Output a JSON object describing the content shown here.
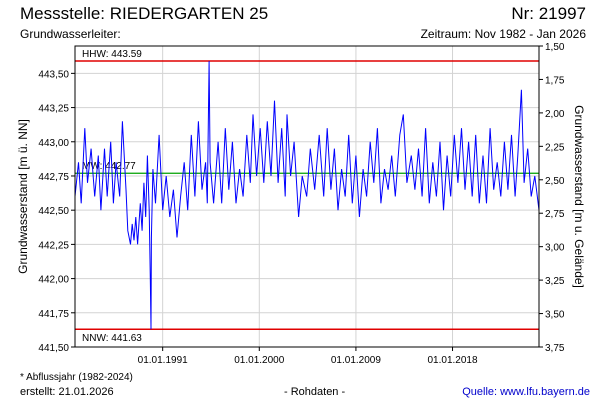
{
  "header": {
    "title": "Messstelle: RIEDERGARTEN 25",
    "number": "Nr: 21997",
    "aquifer": "Grundwasserleiter:",
    "period": "Zeitraum: Nov 1982 - Jan 2026"
  },
  "footer": {
    "footnote": "* Abflussjahr (1982-2024)",
    "created": "erstellt:  21.01.2026",
    "data_type": "- Rohdaten -",
    "source": "Quelle: www.lfu.bayern.de"
  },
  "chart_data": {
    "type": "line",
    "ylabel": "Grundwasserstand [m ü. NN]",
    "y2label": "Grundwasserstand [m u. Gelände]",
    "ylim": [
      441.5,
      443.7
    ],
    "y2lim": [
      3.75,
      1.5
    ],
    "xlim": [
      "1982-11-01",
      "2026-01-21"
    ],
    "grid": true,
    "y_ticks": [
      "441,50",
      "441,75",
      "442,00",
      "442,25",
      "442,50",
      "442,75",
      "443,00",
      "443,25",
      "443,50"
    ],
    "y2_ticks": [
      "3,75",
      "3,50",
      "3,25",
      "3,00",
      "2,75",
      "2,50",
      "2,25",
      "2,00",
      "1,75",
      "1,50"
    ],
    "x_ticks": [
      {
        "label": "01.01.1991",
        "date": "1991-01-01"
      },
      {
        "label": "01.01.2000",
        "date": "2000-01-01"
      },
      {
        "label": "01.01.2009",
        "date": "2009-01-01"
      },
      {
        "label": "01.01.2018",
        "date": "2018-01-01"
      }
    ],
    "reference_lines": [
      {
        "name": "HHW",
        "label": "HHW: 443.59",
        "value": 443.59,
        "color": "#e00000"
      },
      {
        "name": "MW",
        "label": "MW: 442.77",
        "value": 442.77,
        "color": "#00a000"
      },
      {
        "name": "NNW",
        "label": "NNW: 441.63",
        "value": 441.63,
        "color": "#e00000"
      }
    ],
    "series": [
      {
        "color": "#0000ff",
        "points": [
          [
            "1982-11-01",
            442.6
          ],
          [
            "1983-03-01",
            442.85
          ],
          [
            "1983-06-01",
            442.55
          ],
          [
            "1983-10-01",
            443.1
          ],
          [
            "1984-01-01",
            442.7
          ],
          [
            "1984-05-01",
            442.95
          ],
          [
            "1984-09-01",
            442.6
          ],
          [
            "1985-01-01",
            442.9
          ],
          [
            "1985-04-01",
            442.5
          ],
          [
            "1985-08-01",
            442.95
          ],
          [
            "1985-11-01",
            442.6
          ],
          [
            "1986-03-01",
            443.0
          ],
          [
            "1986-06-01",
            442.55
          ],
          [
            "1986-09-01",
            442.85
          ],
          [
            "1987-01-01",
            442.6
          ],
          [
            "1987-04-01",
            443.15
          ],
          [
            "1987-08-01",
            442.65
          ],
          [
            "1987-10-01",
            442.35
          ],
          [
            "1988-01-01",
            442.25
          ],
          [
            "1988-03-01",
            442.4
          ],
          [
            "1988-05-01",
            442.28
          ],
          [
            "1988-07-01",
            442.45
          ],
          [
            "1988-09-01",
            442.25
          ],
          [
            "1988-12-01",
            442.55
          ],
          [
            "1989-02-01",
            442.35
          ],
          [
            "1989-04-01",
            442.7
          ],
          [
            "1989-06-01",
            442.45
          ],
          [
            "1989-08-01",
            442.9
          ],
          [
            "1989-10-01",
            442.5
          ],
          [
            "1989-11-10",
            441.95
          ],
          [
            "1989-12-01",
            441.63
          ],
          [
            "1989-12-15",
            442.3
          ],
          [
            "1990-02-01",
            442.8
          ],
          [
            "1990-05-01",
            442.55
          ],
          [
            "1990-09-01",
            443.05
          ],
          [
            "1991-01-01",
            442.5
          ],
          [
            "1991-05-01",
            442.75
          ],
          [
            "1991-09-01",
            442.45
          ],
          [
            "1992-01-01",
            442.65
          ],
          [
            "1992-05-01",
            442.3
          ],
          [
            "1992-09-01",
            442.6
          ],
          [
            "1993-01-01",
            442.85
          ],
          [
            "1993-05-01",
            442.5
          ],
          [
            "1993-09-01",
            443.05
          ],
          [
            "1994-01-01",
            442.6
          ],
          [
            "1994-05-01",
            443.15
          ],
          [
            "1994-09-01",
            442.65
          ],
          [
            "1995-01-01",
            442.85
          ],
          [
            "1995-03-01",
            442.55
          ],
          [
            "1995-05-01",
            443.59
          ],
          [
            "1995-06-01",
            442.85
          ],
          [
            "1995-10-01",
            442.55
          ],
          [
            "1996-03-01",
            443.0
          ],
          [
            "1996-07-01",
            442.55
          ],
          [
            "1996-11-01",
            443.1
          ],
          [
            "1997-03-01",
            442.65
          ],
          [
            "1997-07-01",
            443.0
          ],
          [
            "1997-11-01",
            442.55
          ],
          [
            "1998-03-01",
            442.8
          ],
          [
            "1998-07-01",
            442.6
          ],
          [
            "1998-11-01",
            443.05
          ],
          [
            "1999-03-01",
            442.7
          ],
          [
            "1999-06-01",
            443.2
          ],
          [
            "1999-10-01",
            442.75
          ],
          [
            "2000-02-01",
            443.1
          ],
          [
            "2000-06-01",
            442.7
          ],
          [
            "2000-10-01",
            443.15
          ],
          [
            "2001-02-01",
            442.75
          ],
          [
            "2001-06-01",
            443.3
          ],
          [
            "2001-10-01",
            442.7
          ],
          [
            "2002-02-01",
            443.1
          ],
          [
            "2002-06-01",
            442.6
          ],
          [
            "2002-08-01",
            443.2
          ],
          [
            "2002-12-01",
            442.75
          ],
          [
            "2003-04-01",
            443.0
          ],
          [
            "2003-09-01",
            442.45
          ],
          [
            "2004-01-01",
            442.75
          ],
          [
            "2004-06-01",
            442.6
          ],
          [
            "2004-10-01",
            442.95
          ],
          [
            "2005-03-01",
            442.65
          ],
          [
            "2005-08-01",
            443.05
          ],
          [
            "2006-01-01",
            442.6
          ],
          [
            "2006-05-01",
            443.1
          ],
          [
            "2006-09-01",
            442.65
          ],
          [
            "2007-01-01",
            442.95
          ],
          [
            "2007-05-01",
            442.5
          ],
          [
            "2007-09-01",
            442.8
          ],
          [
            "2008-01-01",
            442.6
          ],
          [
            "2008-05-01",
            443.05
          ],
          [
            "2008-09-01",
            442.55
          ],
          [
            "2009-01-01",
            442.9
          ],
          [
            "2009-05-01",
            442.45
          ],
          [
            "2009-09-01",
            442.8
          ],
          [
            "2010-01-01",
            442.6
          ],
          [
            "2010-05-01",
            443.0
          ],
          [
            "2010-09-01",
            442.7
          ],
          [
            "2011-01-01",
            443.1
          ],
          [
            "2011-05-01",
            442.55
          ],
          [
            "2011-09-01",
            442.8
          ],
          [
            "2012-01-01",
            442.65
          ],
          [
            "2012-05-01",
            442.9
          ],
          [
            "2012-09-01",
            442.6
          ],
          [
            "2013-02-01",
            443.05
          ],
          [
            "2013-06-01",
            443.2
          ],
          [
            "2013-10-01",
            442.7
          ],
          [
            "2014-03-01",
            442.9
          ],
          [
            "2014-07-01",
            442.65
          ],
          [
            "2014-11-01",
            442.95
          ],
          [
            "2015-03-01",
            442.6
          ],
          [
            "2015-07-01",
            443.1
          ],
          [
            "2015-11-01",
            442.55
          ],
          [
            "2016-03-01",
            442.85
          ],
          [
            "2016-07-01",
            442.6
          ],
          [
            "2016-11-01",
            443.0
          ],
          [
            "2017-03-01",
            442.5
          ],
          [
            "2017-07-01",
            442.9
          ],
          [
            "2017-11-01",
            442.6
          ],
          [
            "2018-03-01",
            443.05
          ],
          [
            "2018-07-01",
            442.7
          ],
          [
            "2018-11-01",
            443.1
          ],
          [
            "2019-03-01",
            442.65
          ],
          [
            "2019-07-01",
            443.0
          ],
          [
            "2019-11-01",
            442.6
          ],
          [
            "2020-03-01",
            443.05
          ],
          [
            "2020-07-01",
            442.55
          ],
          [
            "2020-11-01",
            442.9
          ],
          [
            "2021-03-01",
            442.55
          ],
          [
            "2021-07-01",
            443.1
          ],
          [
            "2021-11-01",
            442.65
          ],
          [
            "2022-03-01",
            442.85
          ],
          [
            "2022-07-01",
            442.6
          ],
          [
            "2022-11-01",
            443.0
          ],
          [
            "2023-03-01",
            442.65
          ],
          [
            "2023-07-01",
            443.05
          ],
          [
            "2023-11-01",
            442.6
          ],
          [
            "2024-02-01",
            442.9
          ],
          [
            "2024-06-01",
            443.38
          ],
          [
            "2024-09-01",
            442.7
          ],
          [
            "2025-01-01",
            442.95
          ],
          [
            "2025-05-01",
            442.6
          ],
          [
            "2025-09-01",
            442.75
          ],
          [
            "2026-01-21",
            442.5
          ]
        ]
      }
    ]
  }
}
